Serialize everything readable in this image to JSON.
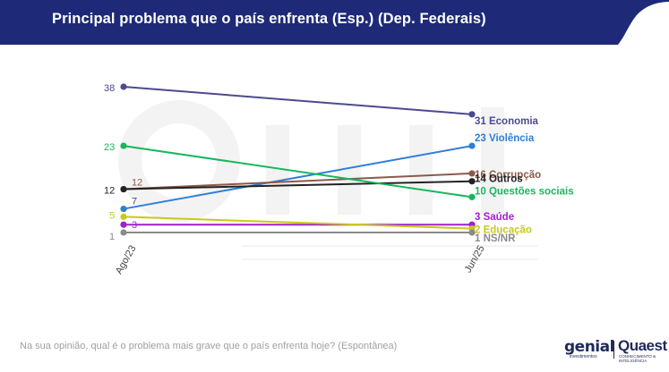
{
  "header": {
    "title": "Principal problema que o país enfrenta (Esp.) (Dep. Federais)",
    "color": "#1e2a78"
  },
  "footnote": "Na sua opinião, qual é o problema mais grave que o país enfrenta hoje? (Espontânea)",
  "logos": {
    "genial": "genial",
    "genial_sub": "investimentos",
    "quaest": "Quaest",
    "quaest_sub": "CONHECIMENTO & INTELIGÊNCIA"
  },
  "chart_data": {
    "type": "line",
    "categories": [
      "Ago/23",
      "Jun/25"
    ],
    "ylim": [
      0,
      41
    ],
    "series": [
      {
        "name": "Economia",
        "values": [
          38,
          31
        ],
        "color": "#4b4a8f",
        "start_label": "38",
        "end_label": "31 Economia",
        "start_label_color": "#4b4a8f"
      },
      {
        "name": "Violência",
        "values": [
          7,
          23
        ],
        "color": "#2f7ed8",
        "start_label": "7",
        "end_label": "23 Violência",
        "start_label_color": "#4b4a8f"
      },
      {
        "name": "Corrupção",
        "values": [
          12,
          16
        ],
        "color": "#8b5a4a",
        "start_label": "12",
        "end_label": "16 Corrupção",
        "start_label_color": "#8b5a4a"
      },
      {
        "name": "Outros",
        "values": [
          12,
          14
        ],
        "color": "#222222",
        "start_label": "12",
        "end_label": "14 Outros",
        "start_label_color": "#222222"
      },
      {
        "name": "Questões sociais",
        "values": [
          23,
          10
        ],
        "color": "#16b85c",
        "start_label": "23",
        "end_label": "10 Questões sociais",
        "start_label_color": "#16b85c"
      },
      {
        "name": "Saúde",
        "values": [
          3,
          3
        ],
        "color": "#a020c8",
        "start_label": "3",
        "end_label": "3 Saúde",
        "start_label_color": "#a020c8"
      },
      {
        "name": "Educação",
        "values": [
          5,
          2
        ],
        "color": "#c8c81e",
        "start_label": "5",
        "end_label": "2 Educação",
        "start_label_color": "#c8c81e"
      },
      {
        "name": "NS/NR",
        "values": [
          1,
          1
        ],
        "color": "#8a8a8a",
        "start_label": "1",
        "end_label": "1 NS/NR",
        "start_label_color": "#8a8a8a"
      }
    ]
  }
}
